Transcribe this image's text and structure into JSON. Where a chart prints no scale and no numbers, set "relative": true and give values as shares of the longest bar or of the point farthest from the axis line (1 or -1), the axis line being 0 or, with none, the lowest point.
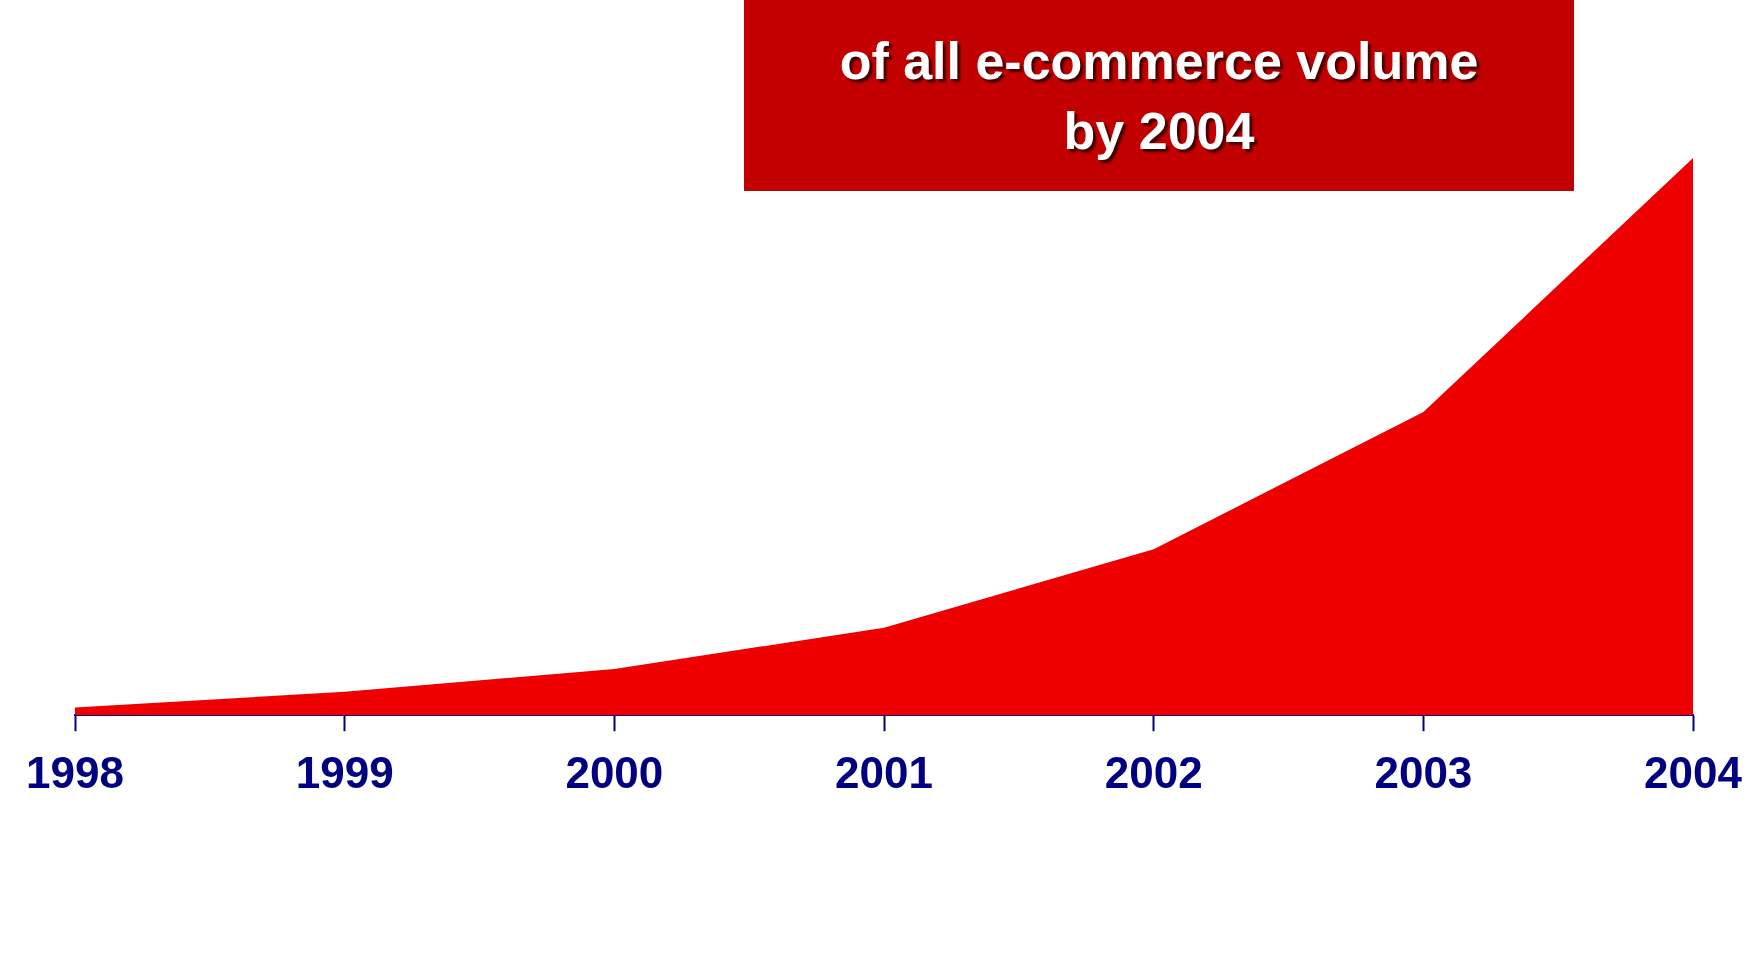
{
  "chart_data": {
    "type": "area",
    "title": "of all e-commerce volume\nby 2004",
    "categories": [
      "1998",
      "1999",
      "2000",
      "2001",
      "2002",
      "2003",
      "2004"
    ],
    "series": [
      {
        "color": "#ee0000",
        "values": [
          0.014,
          0.042,
          0.083,
          0.157,
          0.298,
          0.544,
          1
        ]
      }
    ],
    "relative": true,
    "grid": false,
    "legend": false
  }
}
